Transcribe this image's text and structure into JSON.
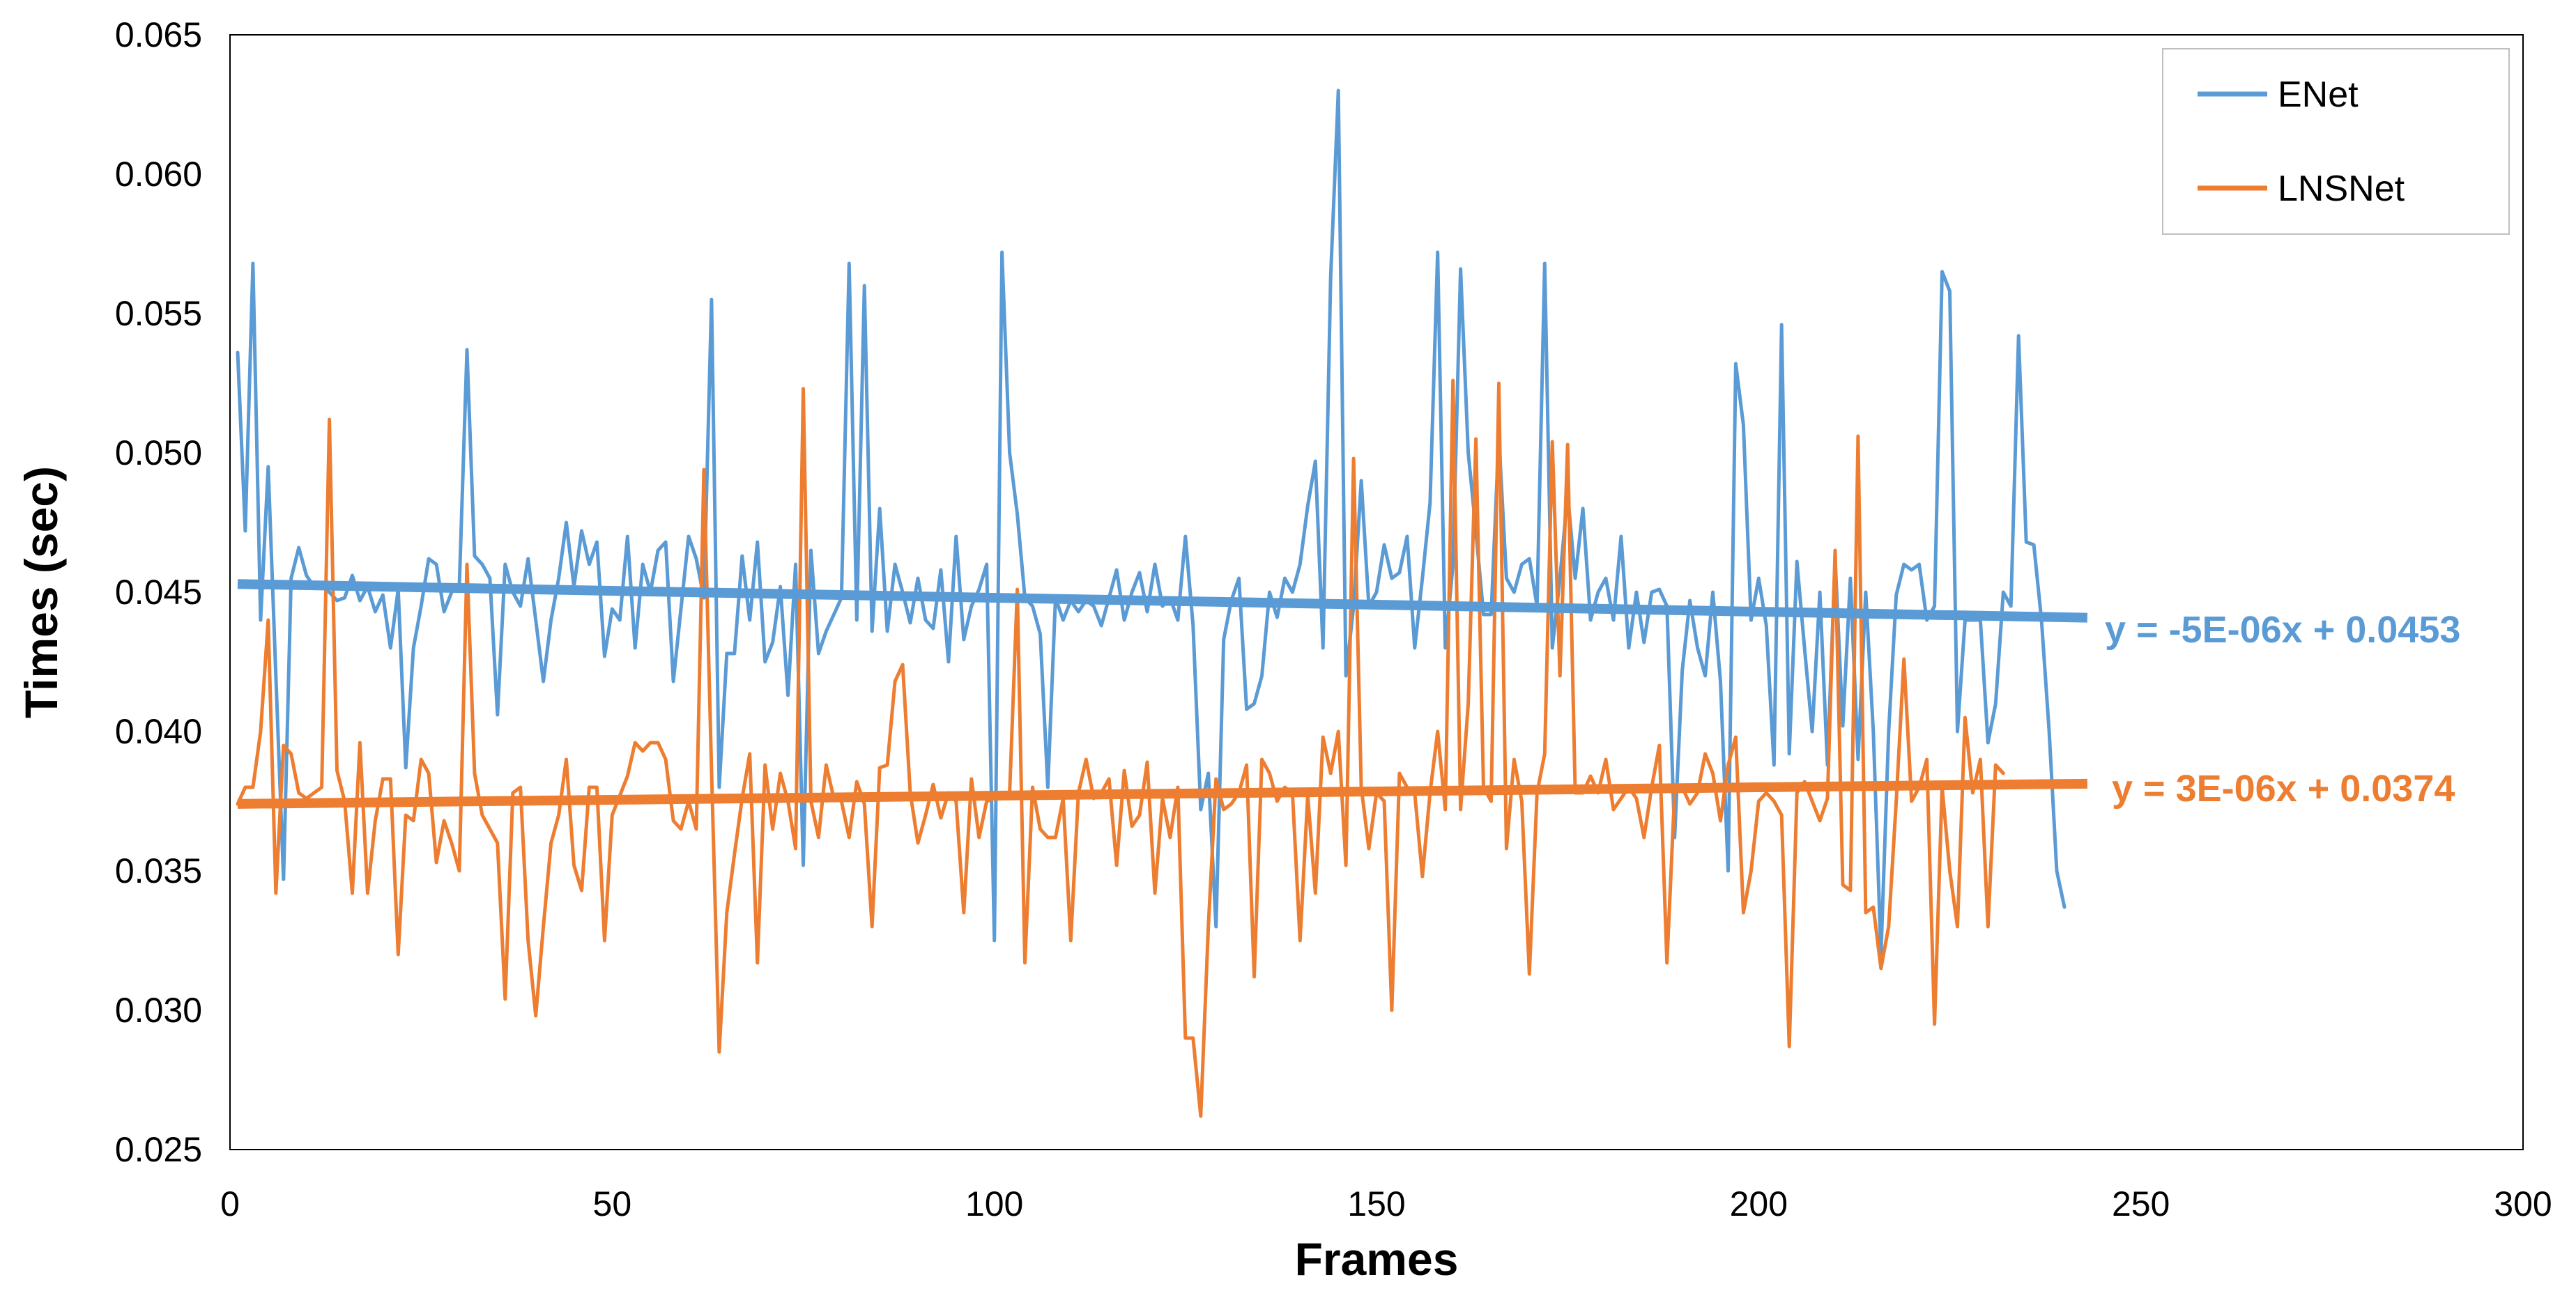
{
  "chart_data": {
    "type": "line",
    "xlabel": "Frames",
    "ylabel": "Times (sec)",
    "xlim": [
      0,
      300
    ],
    "ylim": [
      0.025,
      0.065
    ],
    "x_ticks": [
      "0",
      "50",
      "100",
      "150",
      "200",
      "250",
      "300"
    ],
    "y_ticks": [
      "0.025",
      "0.030",
      "0.035",
      "0.040",
      "0.045",
      "0.050",
      "0.055",
      "0.060",
      "0.065"
    ],
    "grid": false,
    "legend_position": "top-right",
    "series": [
      {
        "name": "ENet",
        "color": "#5B9BD5",
        "x_start": 1,
        "values": [
          0.0536,
          0.0472,
          0.0568,
          0.044,
          0.0495,
          0.042,
          0.0347,
          0.0455,
          0.0466,
          0.0456,
          0.0452,
          0.0453,
          0.045,
          0.0447,
          0.0448,
          0.0456,
          0.0447,
          0.0452,
          0.0443,
          0.0449,
          0.043,
          0.0451,
          0.0387,
          0.043,
          0.0445,
          0.0462,
          0.046,
          0.0443,
          0.045,
          0.0452,
          0.0537,
          0.0463,
          0.046,
          0.0455,
          0.0406,
          0.046,
          0.045,
          0.0445,
          0.0462,
          0.044,
          0.0418,
          0.044,
          0.0455,
          0.0475,
          0.0452,
          0.0472,
          0.046,
          0.0468,
          0.0427,
          0.0444,
          0.044,
          0.047,
          0.043,
          0.046,
          0.045,
          0.0465,
          0.0468,
          0.0418,
          0.0444,
          0.047,
          0.0462,
          0.0448,
          0.0555,
          0.038,
          0.0428,
          0.0428,
          0.0463,
          0.044,
          0.0468,
          0.0425,
          0.0432,
          0.0452,
          0.0413,
          0.046,
          0.0352,
          0.0465,
          0.0428,
          0.0436,
          0.0442,
          0.0448,
          0.0568,
          0.044,
          0.056,
          0.0436,
          0.048,
          0.0436,
          0.046,
          0.045,
          0.0439,
          0.0455,
          0.044,
          0.0437,
          0.0458,
          0.0425,
          0.047,
          0.0433,
          0.0445,
          0.0451,
          0.046,
          0.0325,
          0.0572,
          0.05,
          0.0478,
          0.0448,
          0.0445,
          0.0435,
          0.038,
          0.0448,
          0.044,
          0.0447,
          0.0443,
          0.0447,
          0.0445,
          0.0438,
          0.0448,
          0.0458,
          0.044,
          0.045,
          0.0457,
          0.0443,
          0.046,
          0.0445,
          0.0448,
          0.044,
          0.047,
          0.0438,
          0.0372,
          0.0385,
          0.033,
          0.0433,
          0.0447,
          0.0455,
          0.0408,
          0.041,
          0.042,
          0.045,
          0.0441,
          0.0455,
          0.045,
          0.046,
          0.0481,
          0.0497,
          0.043,
          0.0563,
          0.063,
          0.042,
          0.0445,
          0.049,
          0.0445,
          0.045,
          0.0467,
          0.0455,
          0.0457,
          0.047,
          0.043,
          0.0455,
          0.0482,
          0.0572,
          0.043,
          0.046,
          0.0566,
          0.05,
          0.0472,
          0.0442,
          0.0442,
          0.0506,
          0.0455,
          0.045,
          0.046,
          0.0462,
          0.0445,
          0.0568,
          0.043,
          0.0455,
          0.0485,
          0.0455,
          0.048,
          0.044,
          0.045,
          0.0455,
          0.044,
          0.047,
          0.043,
          0.045,
          0.0432,
          0.045,
          0.0451,
          0.0445,
          0.0362,
          0.0422,
          0.0447,
          0.043,
          0.042,
          0.045,
          0.0418,
          0.035,
          0.0532,
          0.051,
          0.044,
          0.0455,
          0.0438,
          0.0388,
          0.0546,
          0.0392,
          0.0461,
          0.043,
          0.04,
          0.045,
          0.0388,
          0.0462,
          0.0402,
          0.0455,
          0.039,
          0.045,
          0.04,
          0.032,
          0.04,
          0.0449,
          0.046,
          0.0458,
          0.046,
          0.044,
          0.0445,
          0.0565,
          0.0558,
          0.04,
          0.044,
          0.044,
          0.044,
          0.0396,
          0.041,
          0.045,
          0.0445,
          0.0542,
          0.0468,
          0.0467,
          0.044,
          0.04,
          0.035,
          0.0337
        ]
      },
      {
        "name": "LNSNet",
        "color": "#ED7D31",
        "x_start": 1,
        "values": [
          0.0374,
          0.038,
          0.038,
          0.04,
          0.044,
          0.0342,
          0.0395,
          0.0392,
          0.0378,
          0.0376,
          0.0378,
          0.038,
          0.0512,
          0.0386,
          0.0375,
          0.0342,
          0.0396,
          0.0342,
          0.0368,
          0.0383,
          0.0383,
          0.032,
          0.037,
          0.0368,
          0.039,
          0.0385,
          0.0353,
          0.0368,
          0.036,
          0.035,
          0.046,
          0.0385,
          0.037,
          0.0365,
          0.036,
          0.0304,
          0.0378,
          0.038,
          0.0325,
          0.0298,
          0.033,
          0.036,
          0.037,
          0.039,
          0.0352,
          0.0343,
          0.038,
          0.038,
          0.0325,
          0.037,
          0.0377,
          0.0384,
          0.0396,
          0.0393,
          0.0396,
          0.0396,
          0.039,
          0.0368,
          0.0365,
          0.0375,
          0.0365,
          0.0494,
          0.0386,
          0.0285,
          0.0335,
          0.0356,
          0.0376,
          0.0392,
          0.0317,
          0.0388,
          0.0365,
          0.0385,
          0.0375,
          0.0358,
          0.0523,
          0.0375,
          0.0362,
          0.0388,
          0.0376,
          0.0375,
          0.0362,
          0.0382,
          0.0374,
          0.033,
          0.0387,
          0.0388,
          0.0418,
          0.0424,
          0.0378,
          0.036,
          0.037,
          0.0381,
          0.0369,
          0.0378,
          0.0375,
          0.0335,
          0.0383,
          0.0362,
          0.0375,
          0.0376,
          0.0378,
          0.0378,
          0.0451,
          0.0317,
          0.038,
          0.0365,
          0.0362,
          0.0362,
          0.0376,
          0.0325,
          0.0378,
          0.039,
          0.0376,
          0.0378,
          0.0383,
          0.0352,
          0.0386,
          0.0366,
          0.037,
          0.0389,
          0.0342,
          0.0376,
          0.0362,
          0.038,
          0.029,
          0.029,
          0.0262,
          0.033,
          0.0383,
          0.0372,
          0.0374,
          0.0378,
          0.0388,
          0.0312,
          0.039,
          0.0385,
          0.0375,
          0.038,
          0.0378,
          0.0325,
          0.0377,
          0.0342,
          0.0398,
          0.0385,
          0.04,
          0.0352,
          0.0498,
          0.038,
          0.0358,
          0.0378,
          0.0375,
          0.03,
          0.0385,
          0.038,
          0.0378,
          0.0348,
          0.0378,
          0.04,
          0.0372,
          0.0526,
          0.0372,
          0.041,
          0.0505,
          0.038,
          0.0375,
          0.0525,
          0.0358,
          0.039,
          0.0375,
          0.0313,
          0.0378,
          0.0392,
          0.0504,
          0.042,
          0.0503,
          0.0378,
          0.0378,
          0.0384,
          0.0378,
          0.039,
          0.0372,
          0.0376,
          0.038,
          0.0376,
          0.0362,
          0.038,
          0.0395,
          0.0317,
          0.0378,
          0.038,
          0.0374,
          0.0378,
          0.0392,
          0.0385,
          0.0368,
          0.0388,
          0.0398,
          0.0335,
          0.035,
          0.0375,
          0.0378,
          0.0375,
          0.037,
          0.0287,
          0.0378,
          0.0382,
          0.0375,
          0.0368,
          0.0376,
          0.0465,
          0.0345,
          0.0343,
          0.0506,
          0.0335,
          0.0337,
          0.0315,
          0.033,
          0.0375,
          0.0426,
          0.0375,
          0.038,
          0.039,
          0.0295,
          0.038,
          0.035,
          0.033,
          0.0405,
          0.0378,
          0.039,
          0.033,
          0.0388,
          0.0385
        ]
      }
    ],
    "trendlines": [
      {
        "series": "ENet",
        "slope": -5e-06,
        "intercept": 0.0453,
        "x_range": [
          1,
          243
        ],
        "label": "y = -5E-06x + 0.0453"
      },
      {
        "series": "LNSNet",
        "slope": 3e-06,
        "intercept": 0.0374,
        "x_range": [
          1,
          243
        ],
        "label": "y = 3E-06x + 0.0374"
      }
    ]
  }
}
